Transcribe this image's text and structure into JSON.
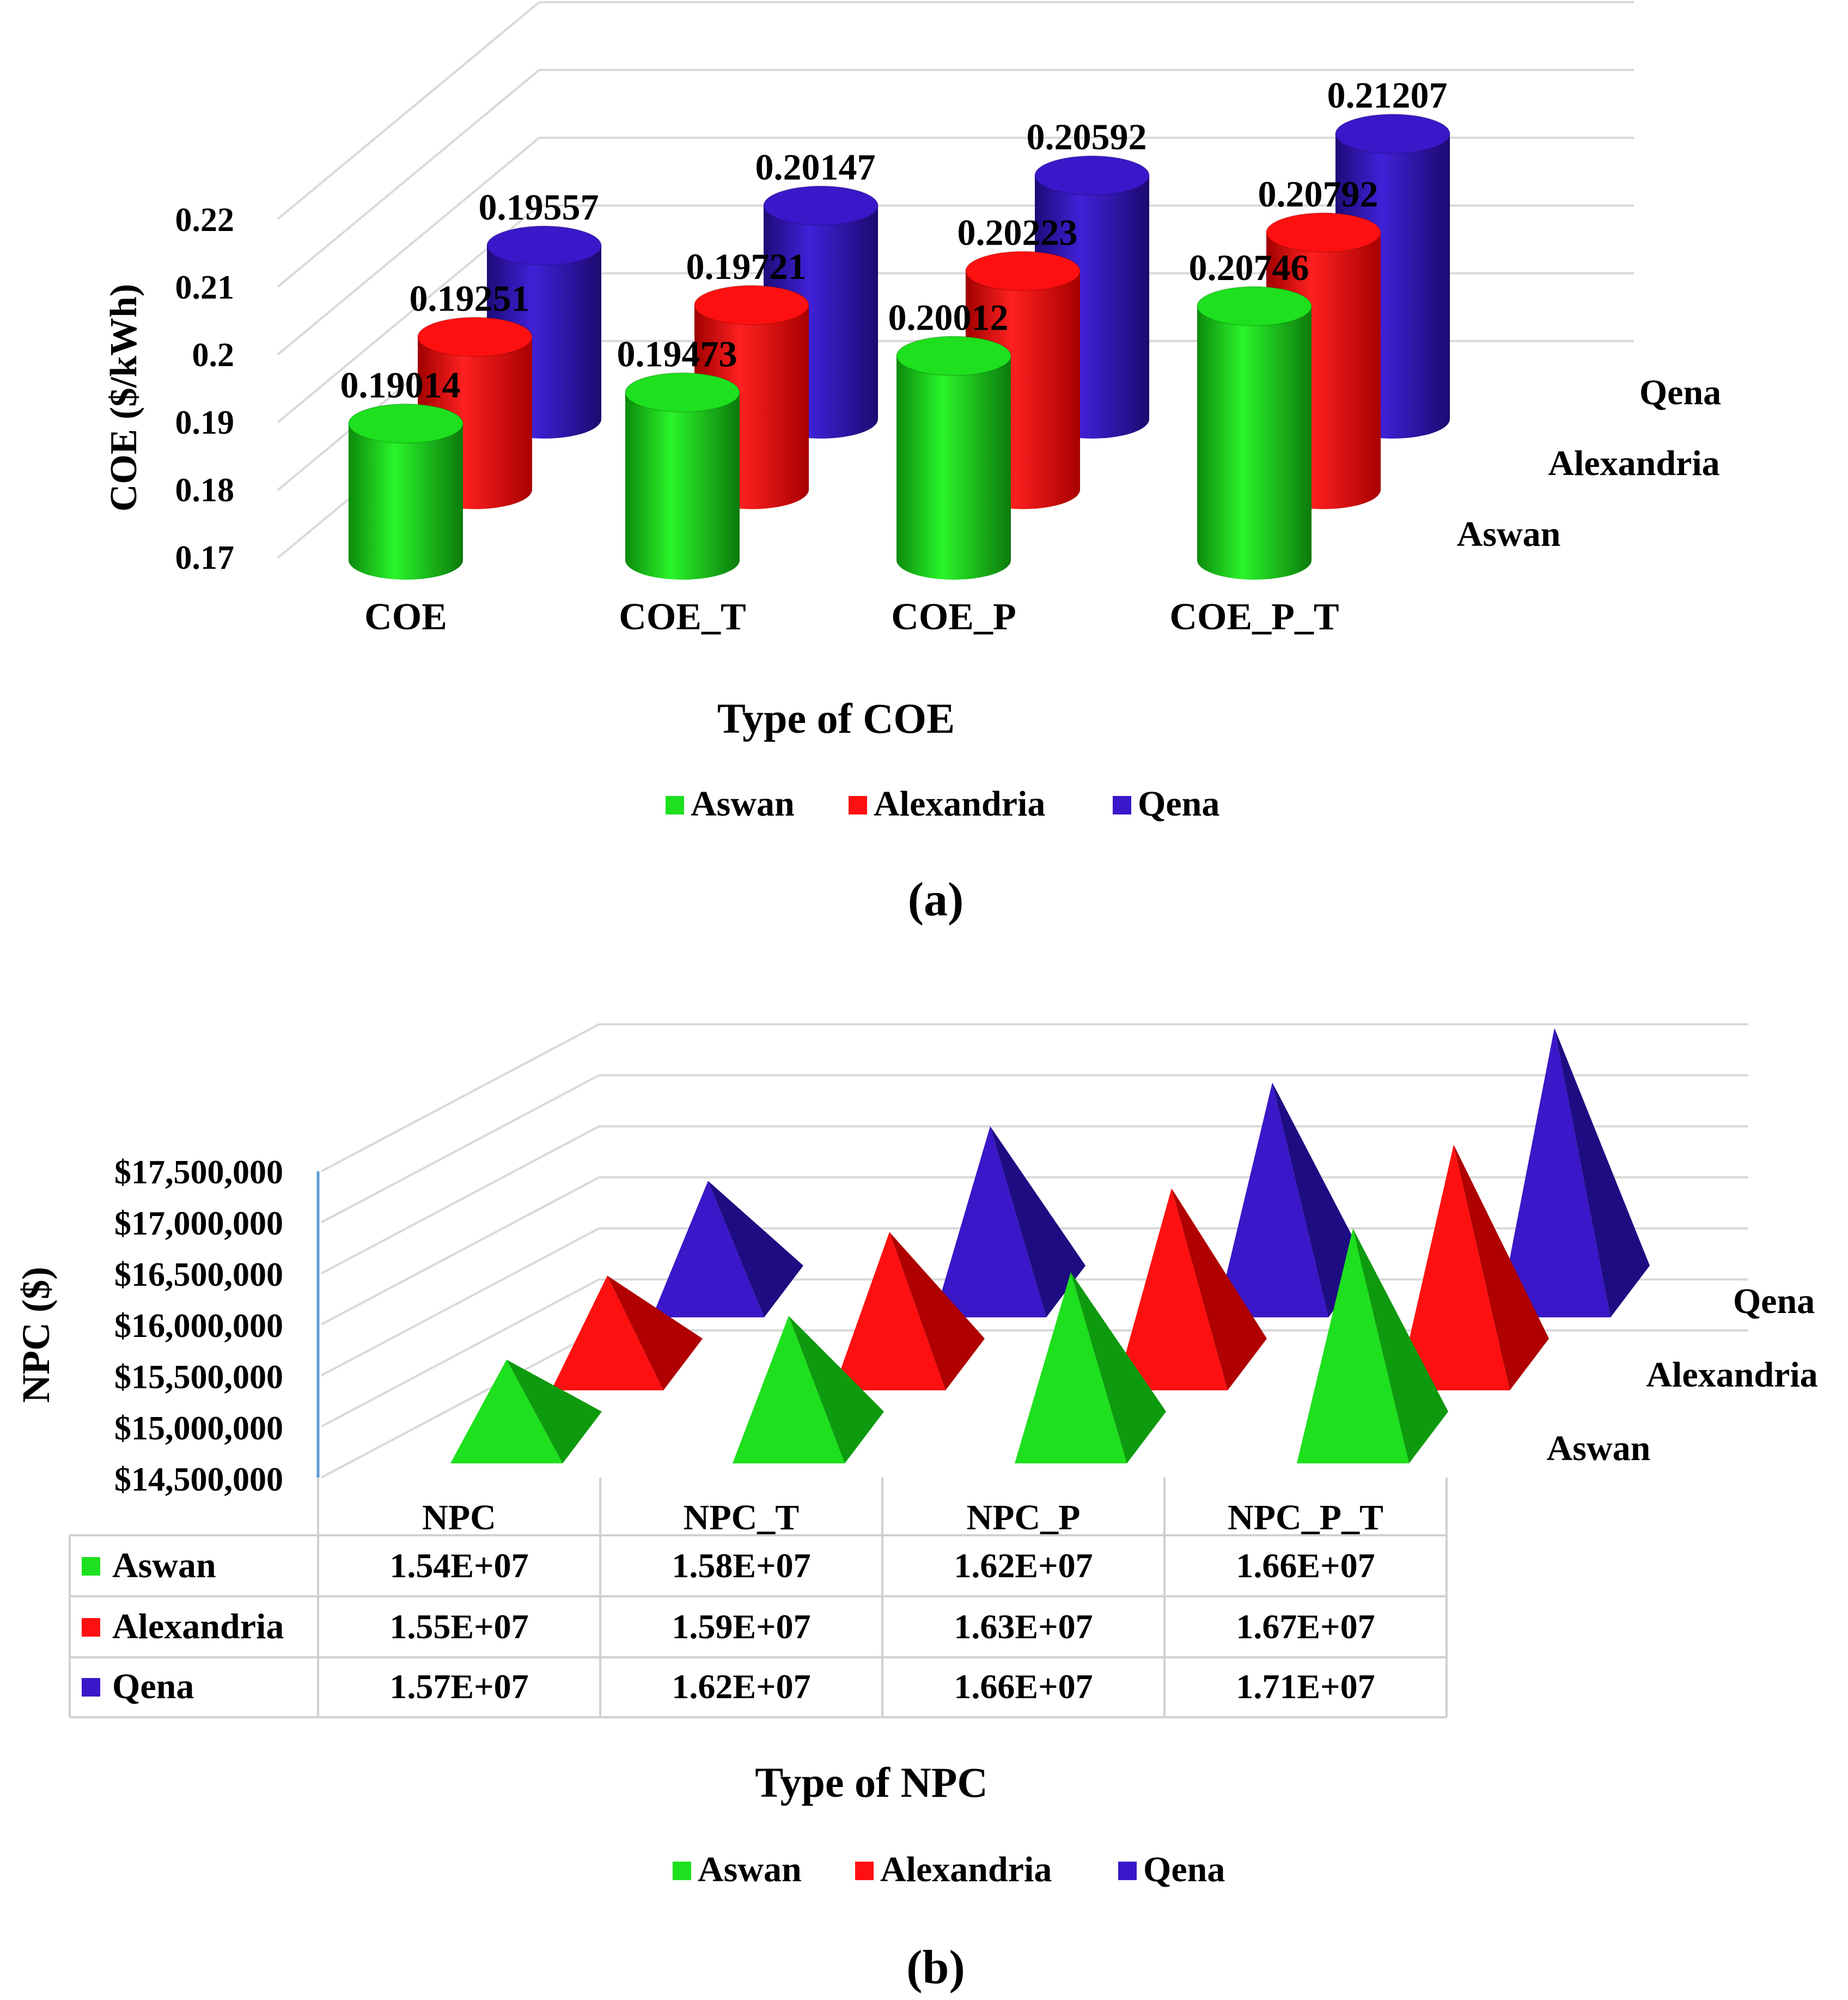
{
  "colors": {
    "Aswan": "#1ee01e",
    "Alexandria": "#ff1010",
    "Qena": "#3a17c8",
    "grid": "#d9d9d9",
    "axis_blue": "#5b9bd5"
  },
  "chart_data": [
    {
      "type": "bar",
      "shape": "cylinder",
      "panel_label": "(a)",
      "title": "",
      "xlabel": "Type of COE",
      "ylabel": "COE ($/kWh)",
      "categories": [
        "COE",
        "COE_T",
        "COE_P",
        "COE_P_T"
      ],
      "yticks": [
        "0.17",
        "0.18",
        "0.19",
        "0.2",
        "0.21",
        "0.22"
      ],
      "ylim": [
        0.17,
        0.22
      ],
      "depth_labels": [
        "Aswan",
        "Alexandria",
        "Qena"
      ],
      "legend": [
        "Aswan",
        "Alexandria",
        "Qena"
      ],
      "legend_position": "bottom",
      "series": [
        {
          "name": "Aswan",
          "values": [
            0.19014,
            0.19473,
            0.20012,
            0.20746
          ],
          "labels": [
            "0.19014",
            "0.19473",
            "0.20012",
            "0.20746"
          ]
        },
        {
          "name": "Alexandria",
          "values": [
            0.19251,
            0.19721,
            0.20223,
            0.20792
          ],
          "labels": [
            "0.19251",
            "0.19721",
            "0.20223",
            "0.20792"
          ]
        },
        {
          "name": "Qena",
          "values": [
            0.19557,
            0.20147,
            0.20592,
            0.21207
          ],
          "labels": [
            "0.19557",
            "0.20147",
            "0.20592",
            "0.21207"
          ]
        }
      ]
    },
    {
      "type": "bar",
      "shape": "pyramid",
      "panel_label": "(b)",
      "title": "",
      "xlabel": "Type of NPC",
      "ylabel": "NPC ($)",
      "categories": [
        "NPC",
        "NPC_T",
        "NPC_P",
        "NPC_P_T"
      ],
      "yticks": [
        "$14,500,000",
        "$15,000,000",
        "$15,500,000",
        "$16,000,000",
        "$16,500,000",
        "$17,000,000",
        "$17,500,000"
      ],
      "ylim": [
        14500000,
        17500000
      ],
      "depth_labels": [
        "Aswan",
        "Alexandria",
        "Qena"
      ],
      "legend": [
        "Aswan",
        "Alexandria",
        "Qena"
      ],
      "legend_position": "bottom",
      "series": [
        {
          "name": "Aswan",
          "values": [
            15400000,
            15800000,
            16200000,
            16600000
          ],
          "table": [
            "1.54E+07",
            "1.58E+07",
            "1.62E+07",
            "1.66E+07"
          ]
        },
        {
          "name": "Alexandria",
          "values": [
            15500000,
            15900000,
            16300000,
            16700000
          ],
          "table": [
            "1.55E+07",
            "1.59E+07",
            "1.63E+07",
            "1.67E+07"
          ]
        },
        {
          "name": "Qena",
          "values": [
            15700000,
            16200000,
            16600000,
            17100000
          ],
          "table": [
            "1.57E+07",
            "1.62E+07",
            "1.66E+07",
            "1.71E+07"
          ]
        }
      ]
    }
  ]
}
